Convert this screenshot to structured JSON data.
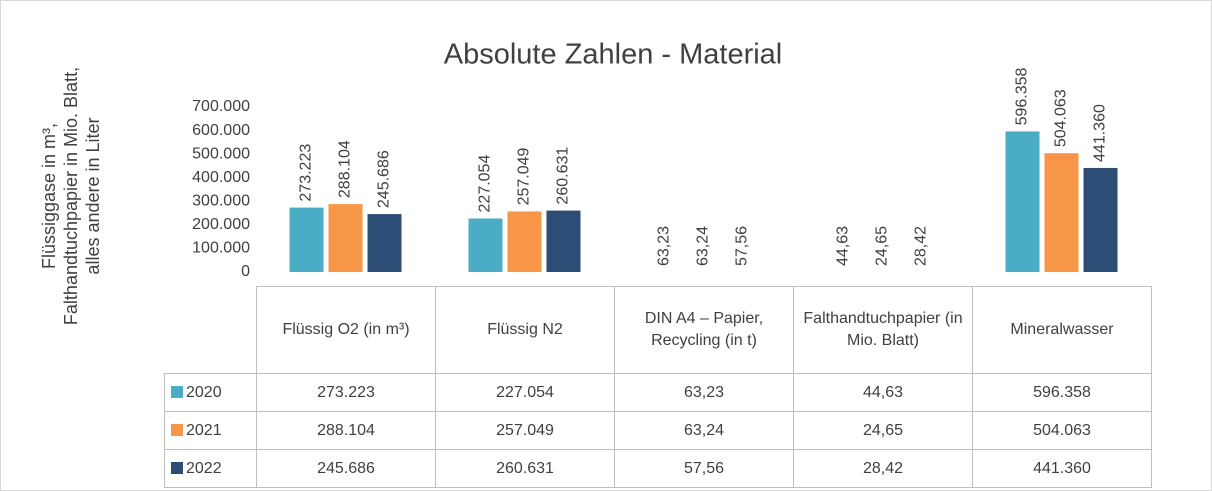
{
  "chart_data": {
    "type": "bar",
    "title": "Absolute Zahlen - Material",
    "y_label": [
      "Flüssiggase in m³,",
      "Falthandtuchpapier in Mio. Blatt,",
      "alles  andere in Liter"
    ],
    "categories": [
      "Flüssig O2 (in m³)",
      "Flüssig N2",
      "DIN A4 – Papier, Recycling (in t)",
      "Falthandtuchpapier (in Mio. Blatt)",
      "Mineralwasser"
    ],
    "series": [
      {
        "name": "2020",
        "color": "#4bacc6",
        "values": [
          273223,
          227054,
          63.23,
          44.63,
          596358
        ],
        "value_labels": [
          "273.223",
          "227.054",
          "63,23",
          "44,63",
          "596.358"
        ]
      },
      {
        "name": "2021",
        "color": "#f79646",
        "values": [
          288104,
          257049,
          63.24,
          24.65,
          504063
        ],
        "value_labels": [
          "288.104",
          "257.049",
          "63,24",
          "24,65",
          "504.063"
        ]
      },
      {
        "name": "2022",
        "color": "#2c4d75",
        "values": [
          245686,
          260631,
          57.56,
          28.42,
          441360
        ],
        "value_labels": [
          "245.686",
          "260.631",
          "57,56",
          "28,42",
          "441.360"
        ]
      }
    ],
    "ylim": [
      0,
      700000
    ],
    "yticks": [
      0,
      {
        "value": 100000,
        "label": "100.000"
      },
      {
        "value": 200000,
        "label": "200.000"
      },
      {
        "value": 300000,
        "label": "300.000"
      },
      {
        "value": 400000,
        "label": "400.000"
      },
      {
        "value": 500000,
        "label": "500.000"
      },
      {
        "value": 600000,
        "label": "600.000"
      },
      {
        "value": 700000,
        "label": "700.000"
      }
    ],
    "data_table": true
  }
}
